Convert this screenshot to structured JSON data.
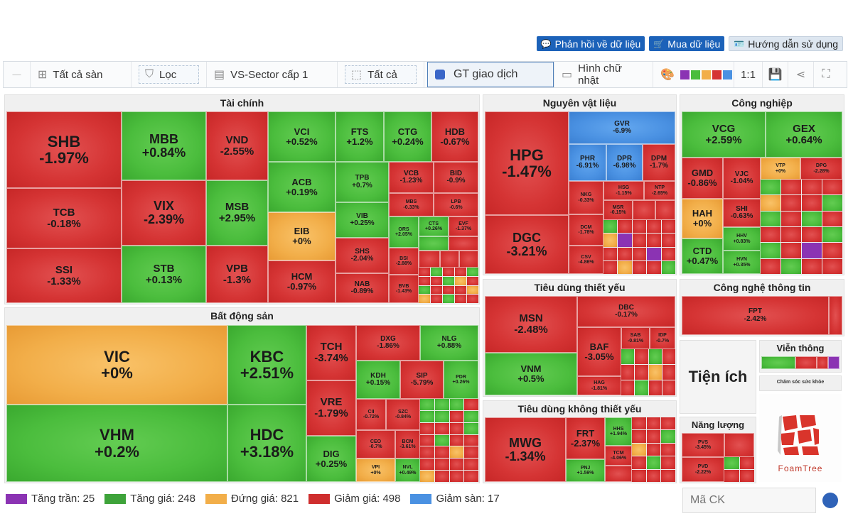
{
  "top_actions": {
    "feedback": "Phản hồi về dữ liệu",
    "buy": "Mua dữ liệu",
    "guide": "Hướng dẫn sử dụng"
  },
  "toolbar": {
    "exchange": "Tất cả sàn",
    "filter": "Lọc",
    "sector": "VS-Sector cấp 1",
    "scope": "Tất cả",
    "metric": "GT giao dịch",
    "shape": "Hình chữ nhật",
    "ratio": "1:1",
    "palette": [
      "#8b33b3",
      "#4bbd3d",
      "#f2ae49",
      "#d53434",
      "#4a91e2"
    ]
  },
  "sectors": {
    "tai_chinh": "Tài chính",
    "bat_dong_san": "Bất động sản",
    "nguyen_vat_lieu": "Nguyên vật liệu",
    "cong_nghiep": "Công nghiệp",
    "tieu_dung_thiet_yeu": "Tiêu dùng thiết yếu",
    "tieu_dung_khong_thiet_yeu": "Tiêu dùng không thiết yếu",
    "cong_nghe": "Công nghệ thông tin",
    "tien_ich": "Tiện ích",
    "vien_thong": "Viễn thông",
    "nang_luong": "Năng lượng",
    "cham_soc": "Chăm sóc sức khỏe"
  },
  "stocks": {
    "SHB": [
      "SHB",
      "-1.97%"
    ],
    "MBB": [
      "MBB",
      "+0.84%"
    ],
    "VND": [
      "VND",
      "-2.55%"
    ],
    "VCI": [
      "VCI",
      "+0.52%"
    ],
    "FTS": [
      "FTS",
      "+1.2%"
    ],
    "CTG": [
      "CTG",
      "+0.24%"
    ],
    "HDB": [
      "HDB",
      "-0.67%"
    ],
    "TCB": [
      "TCB",
      "-0.18%"
    ],
    "VIX": [
      "VIX",
      "-2.39%"
    ],
    "MSB": [
      "MSB",
      "+2.95%"
    ],
    "ACB": [
      "ACB",
      "+0.19%"
    ],
    "TPB": [
      "TPB",
      "+0.7%"
    ],
    "VCB": [
      "VCB",
      "-1.23%"
    ],
    "BID": [
      "BID",
      "-0.9%"
    ],
    "MBS": [
      "MBS",
      "-0.33%"
    ],
    "LPB": [
      "LPB",
      "-0.6%"
    ],
    "VIB": [
      "VIB",
      "+0.25%"
    ],
    "EIB": [
      "EIB",
      "+0%"
    ],
    "ORS": [
      "ORS",
      "+2.05%"
    ],
    "CTS": [
      "CTS",
      "+0.26%"
    ],
    "EVF": [
      "EVF",
      "-1.37%"
    ],
    "SSI": [
      "SSI",
      "-1.33%"
    ],
    "STB": [
      "STB",
      "+0.13%"
    ],
    "VPB": [
      "VPB",
      "-1.3%"
    ],
    "HCM": [
      "HCM",
      "-0.97%"
    ],
    "SHS": [
      "SHS",
      "-2.04%"
    ],
    "BSI": [
      "BSI",
      "-2.88%"
    ],
    "NAB": [
      "NAB",
      "-0.89%"
    ],
    "BVB": [
      "BVB",
      "-1.43%"
    ],
    "VIC": [
      "VIC",
      "+0%"
    ],
    "KBC": [
      "KBC",
      "+2.51%"
    ],
    "TCH": [
      "TCH",
      "-3.74%"
    ],
    "DXG": [
      "DXG",
      "-1.86%"
    ],
    "NLG": [
      "NLG",
      "+0.88%"
    ],
    "KDH": [
      "KDH",
      "+0.15%"
    ],
    "SIP": [
      "SIP",
      "-5.79%"
    ],
    "PDR": [
      "PDR",
      "+0.26%"
    ],
    "VHM": [
      "VHM",
      "+0.2%"
    ],
    "HDC": [
      "HDC",
      "+3.18%"
    ],
    "VRE": [
      "VRE",
      "-1.79%"
    ],
    "CII": [
      "CII",
      "-0.72%"
    ],
    "SZC": [
      "SZC",
      "-0.84%"
    ],
    "CEO": [
      "CEO",
      "-0.7%"
    ],
    "BCM": [
      "BCM",
      "-3.61%"
    ],
    "DIG": [
      "DIG",
      "+0.25%"
    ],
    "VPI": [
      "VPI",
      "+0%"
    ],
    "NVL": [
      "NVL",
      "+0.49%"
    ],
    "HPG": [
      "HPG",
      "-1.47%"
    ],
    "GVR": [
      "GVR",
      "-6.9%"
    ],
    "PHR": [
      "PHR",
      "-6.91%"
    ],
    "DPR": [
      "DPR",
      "-6.98%"
    ],
    "DPM": [
      "DPM",
      "-1.7%"
    ],
    "NKG": [
      "NKG",
      "-0.33%"
    ],
    "HSG": [
      "HSG",
      "-1.15%"
    ],
    "NTP": [
      "NTP",
      "-2.65%"
    ],
    "MSR": [
      "MSR",
      "-0.15%"
    ],
    "DGC": [
      "DGC",
      "-3.21%"
    ],
    "DCM": [
      "DCM",
      "-1.78%"
    ],
    "CSV": [
      "CSV",
      "-4.86%"
    ],
    "VCG": [
      "VCG",
      "+2.59%"
    ],
    "GEX": [
      "GEX",
      "+0.64%"
    ],
    "GMD": [
      "GMD",
      "-0.86%"
    ],
    "VJC": [
      "VJC",
      "-1.04%"
    ],
    "VTP": [
      "VTP",
      "+0%"
    ],
    "DPG": [
      "DPG",
      "-2.28%"
    ],
    "HAH": [
      "HAH",
      "+0%"
    ],
    "SHI": [
      "SHI",
      "-0.63%"
    ],
    "HHV": [
      "HHV",
      "+0.83%"
    ],
    "CTD": [
      "CTD",
      "+0.47%"
    ],
    "HVN": [
      "HVN",
      "+0.35%"
    ],
    "MSN": [
      "MSN",
      "-2.48%"
    ],
    "DBC": [
      "DBC",
      "-0.17%"
    ],
    "BAF": [
      "BAF",
      "-3.05%"
    ],
    "VNM": [
      "VNM",
      "+0.5%"
    ],
    "HAG": [
      "HAG",
      "-1.81%"
    ],
    "SAB": [
      "SAB",
      "-0.81%"
    ],
    "IDP": [
      "IDP",
      "-0.7%"
    ],
    "FPT": [
      "FPT",
      "-2.42%"
    ],
    "MWG": [
      "MWG",
      "-1.34%"
    ],
    "FRT": [
      "FRT",
      "-2.37%"
    ],
    "HHS": [
      "HHS",
      "+1.94%"
    ],
    "PNJ": [
      "PNJ",
      "+1.59%"
    ],
    "TCM": [
      "TCM",
      "-4.06%"
    ],
    "PVS": [
      "PVS",
      "-3.45%"
    ],
    "PVD": [
      "PVD",
      "-2.22%"
    ]
  },
  "tien_ich_label": "Tiện ích",
  "foamtree": "FoamTree",
  "legend": [
    {
      "label": "Tăng trần: 25",
      "color": "#8b33b3"
    },
    {
      "label": "Tăng giá: 248",
      "color": "#3ea33a"
    },
    {
      "label": "Đứng giá: 821",
      "color": "#f2ae49"
    },
    {
      "label": "Giảm giá: 498",
      "color": "#cf2e2e"
    },
    {
      "label": "Giảm sàn: 17",
      "color": "#4a91e2"
    }
  ],
  "search": {
    "placeholder": "Mã CK"
  }
}
